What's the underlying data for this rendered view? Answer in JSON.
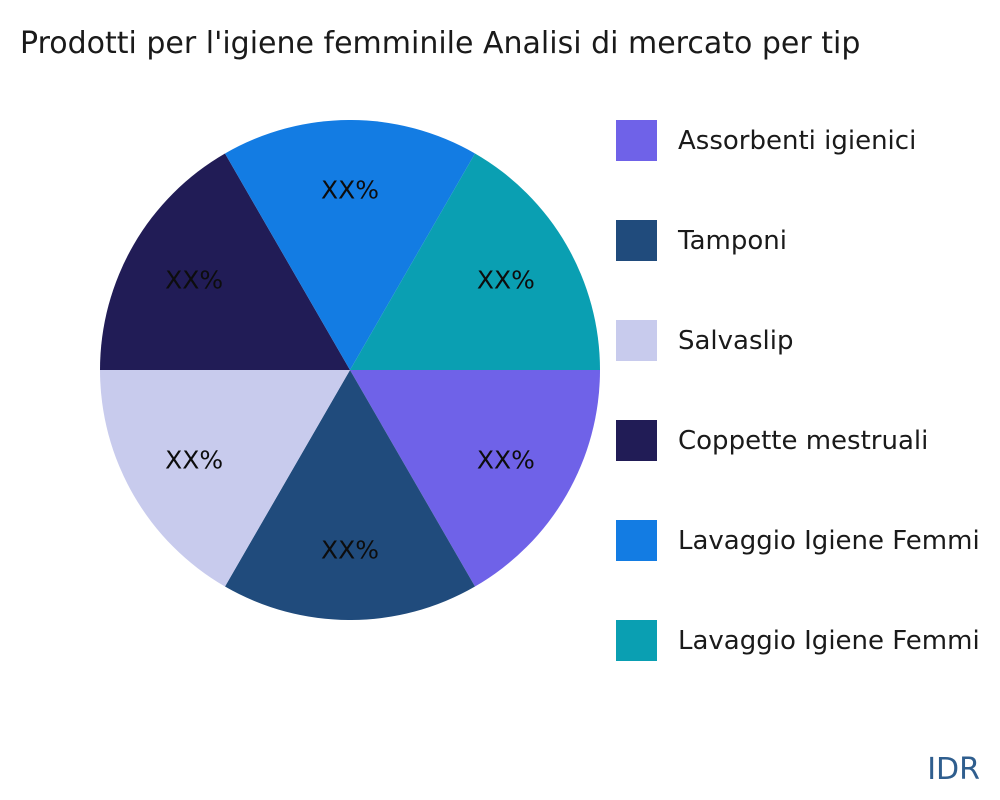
{
  "header": {
    "title": "Prodotti per l'igiene femminile Analisi di mercato per tip"
  },
  "watermark": "IDR",
  "colors": {
    "background": "#ffffff",
    "title_text": "#1a1a1a",
    "slice_label_text": "#0d0d0d",
    "legend_text": "#1a1a1a",
    "watermark_text": "#2f5e8e"
  },
  "chart_data": {
    "type": "pie",
    "title": "Prodotti per l'igiene femminile Analisi di mercato per tip",
    "values_masked": true,
    "start_angle_deg": 0,
    "direction": "clockwise",
    "legend_position": "right",
    "slices": [
      {
        "label": "Assorbenti igienici",
        "display": "XX%",
        "value": 16.67,
        "color": "#6f62e8"
      },
      {
        "label": "Tamponi",
        "display": "XX%",
        "value": 16.67,
        "color": "#204b7c"
      },
      {
        "label": "Salvaslip",
        "display": "XX%",
        "value": 16.67,
        "color": "#c8cbed"
      },
      {
        "label": "Coppette mestruali",
        "display": "XX%",
        "value": 16.67,
        "color": "#211c56"
      },
      {
        "label": "Lavaggio Igiene Femmi",
        "display": "XX%",
        "value": 16.67,
        "color": "#137ce3"
      },
      {
        "label": "Lavaggio Igiene Femmi",
        "display": "XX%",
        "value": 16.67,
        "color": "#0a9fb2"
      }
    ]
  }
}
